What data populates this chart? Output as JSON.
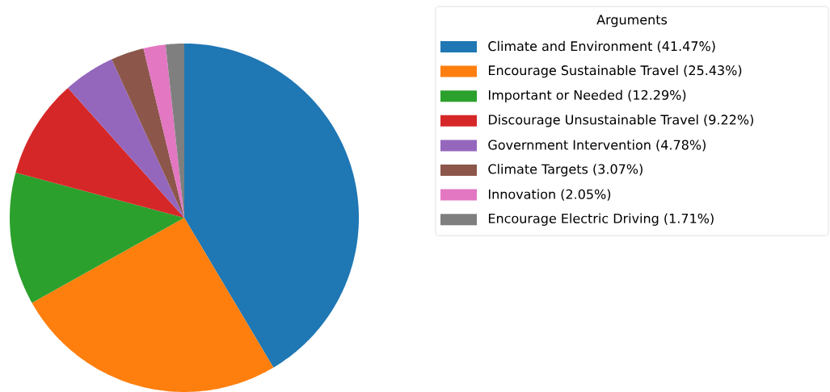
{
  "chart_data": {
    "type": "pie",
    "legend_title": "Arguments",
    "legend": "right",
    "categories": [
      "Climate and Environment (41.47%)",
      "Encourage Sustainable Travel (25.43%)",
      "Important or Needed (12.29%)",
      "Discourage Unsustainable Travel (9.22%)",
      "Government Intervention (4.78%)",
      "Climate Targets (3.07%)",
      "Innovation (2.05%)",
      "Encourage Electric Driving (1.71%)"
    ],
    "values": [
      41.47,
      25.43,
      12.29,
      9.22,
      4.78,
      3.07,
      2.05,
      1.71
    ],
    "colors": [
      "#1f77b4",
      "#ff7f0e",
      "#2ca02c",
      "#d62728",
      "#9467bd",
      "#8c564b",
      "#e377c2",
      "#7f7f7f"
    ]
  }
}
